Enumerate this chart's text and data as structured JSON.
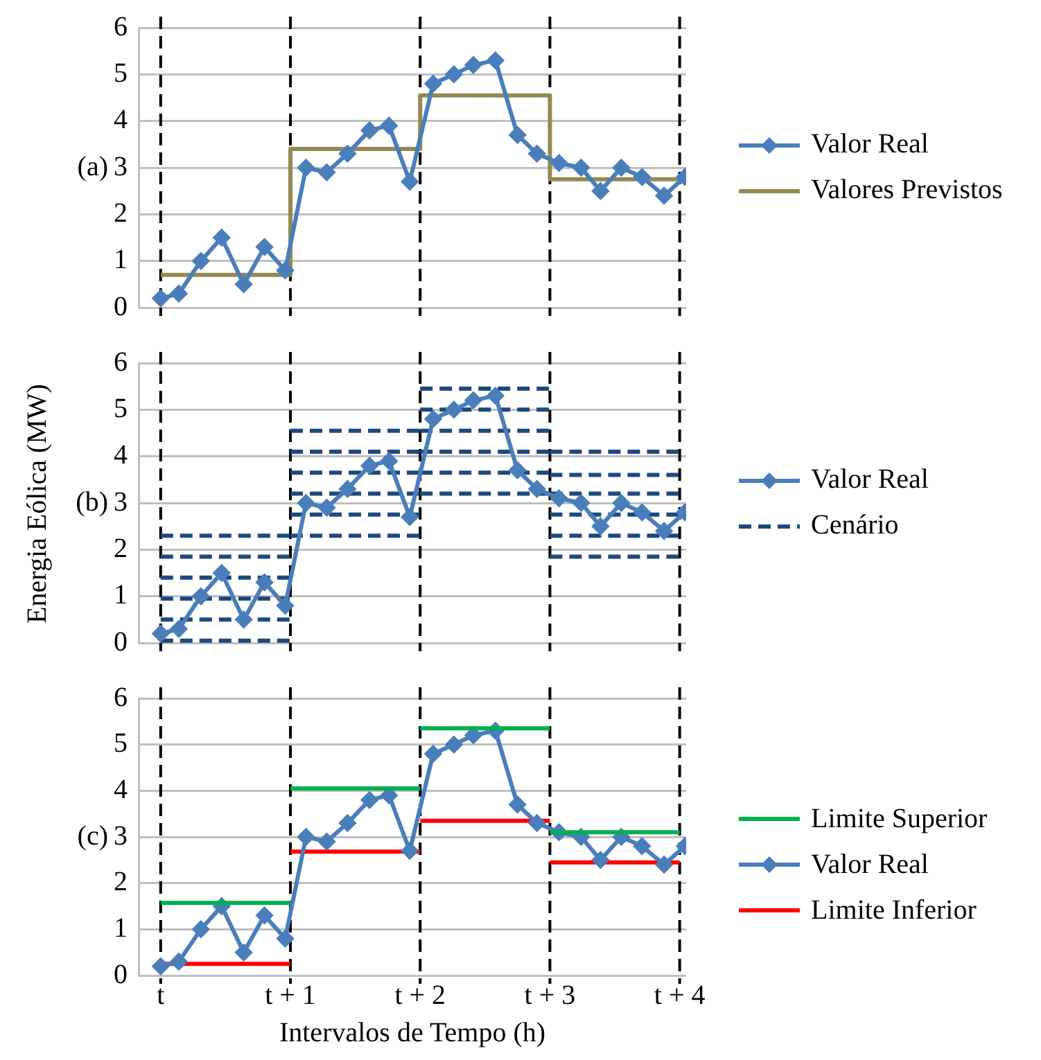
{
  "chart_data": [
    {
      "type": "line",
      "annotations": [
        "(a)"
      ],
      "x": [
        0,
        0.14,
        0.31,
        0.47,
        0.64,
        0.8,
        0.96,
        1.12,
        1.28,
        1.44,
        1.61,
        1.76,
        1.92,
        2.1,
        2.26,
        2.41,
        2.58,
        2.75,
        2.9,
        3.07,
        3.24,
        3.39,
        3.55,
        3.71,
        3.88,
        4.04
      ],
      "series": [
        {
          "name": "Valor Real",
          "color": "#4a7ebb",
          "marker": "diamond",
          "values": [
            0.2,
            0.3,
            1.0,
            1.5,
            0.5,
            1.3,
            0.8,
            3.0,
            2.9,
            3.3,
            3.8,
            3.9,
            2.7,
            4.8,
            5.0,
            5.2,
            5.3,
            3.7,
            3.3,
            3.1,
            3.0,
            2.5,
            3.0,
            2.8,
            2.4,
            2.8
          ]
        },
        {
          "name": "Valores Previstos",
          "type": "step",
          "color": "#938953",
          "x": [
            0,
            1,
            2,
            3,
            4
          ],
          "values": [
            0.7,
            3.4,
            4.55,
            2.75,
            2.75
          ]
        }
      ],
      "xlim": [
        -0.17,
        4.05
      ],
      "ylim": [
        0,
        6
      ],
      "yticks": [
        0,
        1,
        2,
        3,
        4,
        5,
        6
      ],
      "grid": "y",
      "legend": "right",
      "tick_labels": "y",
      "ref_lines": [
        {
          "axis": "x",
          "value": 0,
          "label": null,
          "color": "#000000",
          "line_style": "dashed"
        },
        {
          "axis": "x",
          "value": 1,
          "label": null,
          "color": "#000000",
          "line_style": "dashed"
        },
        {
          "axis": "x",
          "value": 2,
          "label": null,
          "color": "#000000",
          "line_style": "dashed"
        },
        {
          "axis": "x",
          "value": 3,
          "label": null,
          "color": "#000000",
          "line_style": "dashed"
        },
        {
          "axis": "x",
          "value": 4,
          "label": null,
          "color": "#000000",
          "line_style": "dashed"
        }
      ]
    },
    {
      "type": "line",
      "ylabel": "Energia Eólica (MW)",
      "annotations": [
        "(b)"
      ],
      "x": [
        0,
        0.14,
        0.31,
        0.47,
        0.64,
        0.8,
        0.96,
        1.12,
        1.28,
        1.44,
        1.61,
        1.76,
        1.92,
        2.1,
        2.26,
        2.41,
        2.58,
        2.75,
        2.9,
        3.07,
        3.24,
        3.39,
        3.55,
        3.71,
        3.88,
        4.04
      ],
      "series": [
        {
          "name": "Valor Real",
          "color": "#4a7ebb",
          "marker": "diamond",
          "values": [
            0.2,
            0.3,
            1.0,
            1.5,
            0.5,
            1.3,
            0.8,
            3.0,
            2.9,
            3.3,
            3.8,
            3.9,
            2.7,
            4.8,
            5.0,
            5.2,
            5.3,
            3.7,
            3.3,
            3.1,
            3.0,
            2.5,
            3.0,
            2.8,
            2.4,
            2.8
          ]
        },
        {
          "name": "Cenário",
          "color": "#1f497d",
          "line_style": "dashed",
          "x": [
            0,
            1,
            null,
            1,
            2,
            null,
            2,
            3,
            null,
            3,
            4
          ],
          "values": [
            0.05,
            0.05,
            null,
            2.3,
            2.3,
            null,
            3.2,
            3.2,
            null,
            1.85,
            1.85
          ]
        },
        {
          "color": "#1f497d",
          "line_style": "dashed",
          "x": [
            0,
            1,
            null,
            1,
            2,
            null,
            2,
            3,
            null,
            3,
            4
          ],
          "values": [
            0.5,
            0.5,
            null,
            2.75,
            2.75,
            null,
            3.65,
            3.65,
            null,
            2.3,
            2.3
          ]
        },
        {
          "color": "#1f497d",
          "line_style": "dashed",
          "x": [
            0,
            1,
            null,
            1,
            2,
            null,
            2,
            3,
            null,
            3,
            4
          ],
          "values": [
            0.95,
            0.95,
            null,
            3.2,
            3.2,
            null,
            4.1,
            4.1,
            null,
            2.75,
            2.75
          ]
        },
        {
          "color": "#1f497d",
          "line_style": "dashed",
          "x": [
            0,
            1,
            null,
            1,
            2,
            null,
            2,
            3,
            null,
            3,
            4
          ],
          "values": [
            1.4,
            1.4,
            null,
            3.65,
            3.65,
            null,
            4.55,
            4.55,
            null,
            3.2,
            3.2
          ]
        },
        {
          "color": "#1f497d",
          "line_style": "dashed",
          "x": [
            0,
            1,
            null,
            1,
            2,
            null,
            2,
            3,
            null,
            3,
            4
          ],
          "values": [
            1.85,
            1.85,
            null,
            4.1,
            4.1,
            null,
            5.0,
            5.0,
            null,
            3.6,
            3.6
          ]
        },
        {
          "color": "#1f497d",
          "line_style": "dashed",
          "x": [
            0,
            1,
            null,
            1,
            2,
            null,
            2,
            3,
            null,
            3,
            4
          ],
          "values": [
            2.3,
            2.3,
            null,
            4.55,
            4.55,
            null,
            5.45,
            5.45,
            null,
            4.1,
            4.1
          ]
        }
      ],
      "xlim": [
        -0.17,
        4.05
      ],
      "ylim": [
        0,
        6
      ],
      "yticks": [
        0,
        1,
        2,
        3,
        4,
        5,
        6
      ],
      "grid": "y",
      "legend": "right",
      "tick_labels": "y",
      "ref_lines": [
        {
          "axis": "x",
          "value": 0,
          "label": null,
          "color": "#000000",
          "line_style": "dashed"
        },
        {
          "axis": "x",
          "value": 1,
          "label": null,
          "color": "#000000",
          "line_style": "dashed"
        },
        {
          "axis": "x",
          "value": 2,
          "label": null,
          "color": "#000000",
          "line_style": "dashed"
        },
        {
          "axis": "x",
          "value": 3,
          "label": null,
          "color": "#000000",
          "line_style": "dashed"
        },
        {
          "axis": "x",
          "value": 4,
          "label": null,
          "color": "#000000",
          "line_style": "dashed"
        }
      ]
    },
    {
      "type": "line",
      "xlabel": "Intervalos de Tempo (h)",
      "annotations": [
        "(c)"
      ],
      "x": [
        0,
        0.14,
        0.31,
        0.47,
        0.64,
        0.8,
        0.96,
        1.12,
        1.28,
        1.44,
        1.61,
        1.76,
        1.92,
        2.1,
        2.26,
        2.41,
        2.58,
        2.75,
        2.9,
        3.07,
        3.24,
        3.39,
        3.55,
        3.71,
        3.88,
        4.04
      ],
      "series": [
        {
          "name": "Limite Superior",
          "color": "#00b050",
          "x": [
            0,
            1,
            null,
            1,
            2,
            null,
            2,
            3,
            null,
            3,
            4
          ],
          "values": [
            1.57,
            1.57,
            null,
            4.05,
            4.05,
            null,
            5.35,
            5.35,
            null,
            3.1,
            3.1
          ]
        },
        {
          "name": "Valor Real",
          "color": "#4a7ebb",
          "marker": "diamond",
          "values": [
            0.2,
            0.3,
            1.0,
            1.5,
            0.5,
            1.3,
            0.8,
            3.0,
            2.9,
            3.3,
            3.8,
            3.9,
            2.7,
            4.8,
            5.0,
            5.2,
            5.3,
            3.7,
            3.3,
            3.1,
            3.0,
            2.5,
            3.0,
            2.8,
            2.4,
            2.8
          ]
        },
        {
          "name": "Limite Inferior",
          "color": "#ff0000",
          "x": [
            0,
            1,
            null,
            1,
            2,
            null,
            2,
            3,
            null,
            3,
            4
          ],
          "values": [
            0.25,
            0.25,
            null,
            2.68,
            2.68,
            null,
            3.35,
            3.35,
            null,
            2.45,
            2.45
          ]
        }
      ],
      "xlim": [
        -0.17,
        4.05
      ],
      "xticks": [
        {
          "value": 0,
          "label": "t"
        },
        {
          "value": 1,
          "label": "t + 1"
        },
        {
          "value": 2,
          "label": "t + 2"
        },
        {
          "value": 3,
          "label": "t + 3"
        },
        {
          "value": 4,
          "label": "t + 4"
        }
      ],
      "ylim": [
        0,
        6
      ],
      "yticks": [
        0,
        1,
        2,
        3,
        4,
        5,
        6
      ],
      "grid": "y",
      "legend": "right",
      "ref_lines": [
        {
          "axis": "x",
          "value": 0,
          "label": null,
          "color": "#000000",
          "line_style": "dashed"
        },
        {
          "axis": "x",
          "value": 1,
          "label": null,
          "color": "#000000",
          "line_style": "dashed"
        },
        {
          "axis": "x",
          "value": 2,
          "label": null,
          "color": "#000000",
          "line_style": "dashed"
        },
        {
          "axis": "x",
          "value": 3,
          "label": null,
          "color": "#000000",
          "line_style": "dashed"
        },
        {
          "axis": "x",
          "value": 4,
          "label": null,
          "color": "#000000",
          "line_style": "dashed"
        }
      ]
    }
  ]
}
